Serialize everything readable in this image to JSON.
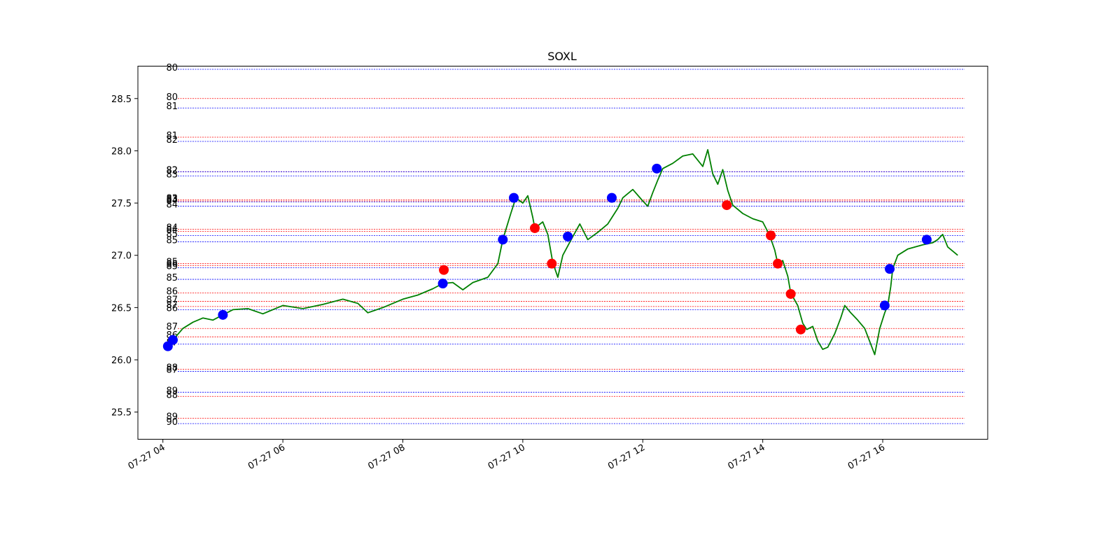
{
  "chart_data": {
    "type": "line",
    "title": "SOXL",
    "xlabel": "",
    "ylabel": "",
    "xlim": [
      "07-27 03:35",
      "07-27 17:45"
    ],
    "ylim": [
      25.24,
      28.81
    ],
    "x_ticks": [
      "07-27 04",
      "07-27 06",
      "07-27 08",
      "07-27 10",
      "07-27 12",
      "07-27 14",
      "07-27 16"
    ],
    "y_ticks": [
      "25.5",
      "26.0",
      "26.5",
      "27.0",
      "27.5",
      "28.0",
      "28.5"
    ],
    "grid": false,
    "colors": {
      "line": "#008000",
      "buy_marker": "#0000ff",
      "sell_marker": "#ff0000",
      "red_level": "#ff0000",
      "blue_level": "#0000ff"
    },
    "series": [
      {
        "type": "line",
        "color": "#008000",
        "points": [
          [
            "07-27 04:05",
            26.13
          ],
          [
            "07-27 04:10",
            26.19
          ],
          [
            "07-27 04:20",
            26.3
          ],
          [
            "07-27 04:30",
            26.36
          ],
          [
            "07-27 04:40",
            26.4
          ],
          [
            "07-27 04:50",
            26.38
          ],
          [
            "07-27 05:00",
            26.43
          ],
          [
            "07-27 05:10",
            26.48
          ],
          [
            "07-27 05:25",
            26.49
          ],
          [
            "07-27 05:40",
            26.44
          ],
          [
            "07-27 06:00",
            26.52
          ],
          [
            "07-27 06:20",
            26.49
          ],
          [
            "07-27 06:40",
            26.53
          ],
          [
            "07-27 07:00",
            26.58
          ],
          [
            "07-27 07:15",
            26.54
          ],
          [
            "07-27 07:25",
            26.45
          ],
          [
            "07-27 07:40",
            26.5
          ],
          [
            "07-27 08:00",
            26.58
          ],
          [
            "07-27 08:15",
            26.62
          ],
          [
            "07-27 08:30",
            26.68
          ],
          [
            "07-27 08:40",
            26.73
          ],
          [
            "07-27 08:50",
            26.74
          ],
          [
            "07-27 09:00",
            26.67
          ],
          [
            "07-27 09:10",
            26.74
          ],
          [
            "07-27 09:25",
            26.79
          ],
          [
            "07-27 09:35",
            26.92
          ],
          [
            "07-27 09:40",
            27.15
          ],
          [
            "07-27 09:48",
            27.4
          ],
          [
            "07-27 09:53",
            27.55
          ],
          [
            "07-27 10:00",
            27.5
          ],
          [
            "07-27 10:05",
            27.57
          ],
          [
            "07-27 10:10",
            27.36
          ],
          [
            "07-27 10:12",
            27.26
          ],
          [
            "07-27 10:20",
            27.32
          ],
          [
            "07-27 10:25",
            27.2
          ],
          [
            "07-27 10:30",
            26.93
          ],
          [
            "07-27 10:35",
            26.79
          ],
          [
            "07-27 10:40",
            27.0
          ],
          [
            "07-27 10:50",
            27.18
          ],
          [
            "07-27 10:57",
            27.3
          ],
          [
            "07-27 11:05",
            27.15
          ],
          [
            "07-27 11:15",
            27.22
          ],
          [
            "07-27 11:25",
            27.3
          ],
          [
            "07-27 11:35",
            27.45
          ],
          [
            "07-27 11:40",
            27.55
          ],
          [
            "07-27 11:50",
            27.63
          ],
          [
            "07-27 12:00",
            27.52
          ],
          [
            "07-27 12:05",
            27.47
          ],
          [
            "07-27 12:10",
            27.6
          ],
          [
            "07-27 12:15",
            27.72
          ],
          [
            "07-27 12:20",
            27.83
          ],
          [
            "07-27 12:30",
            27.88
          ],
          [
            "07-27 12:40",
            27.95
          ],
          [
            "07-27 12:50",
            27.97
          ],
          [
            "07-27 13:00",
            27.85
          ],
          [
            "07-27 13:05",
            28.01
          ],
          [
            "07-27 13:10",
            27.78
          ],
          [
            "07-27 13:15",
            27.68
          ],
          [
            "07-27 13:20",
            27.82
          ],
          [
            "07-27 13:25",
            27.62
          ],
          [
            "07-27 13:30",
            27.48
          ],
          [
            "07-27 13:40",
            27.4
          ],
          [
            "07-27 13:50",
            27.35
          ],
          [
            "07-27 14:00",
            27.32
          ],
          [
            "07-27 14:07",
            27.19
          ],
          [
            "07-27 14:12",
            27.05
          ],
          [
            "07-27 14:15",
            26.92
          ],
          [
            "07-27 14:20",
            26.95
          ],
          [
            "07-27 14:25",
            26.8
          ],
          [
            "07-27 14:28",
            26.64
          ],
          [
            "07-27 14:35",
            26.52
          ],
          [
            "07-27 14:40",
            26.35
          ],
          [
            "07-27 14:44",
            26.29
          ],
          [
            "07-27 14:50",
            26.32
          ],
          [
            "07-27 14:55",
            26.18
          ],
          [
            "07-27 15:00",
            26.1
          ],
          [
            "07-27 15:05",
            26.12
          ],
          [
            "07-27 15:12",
            26.25
          ],
          [
            "07-27 15:18",
            26.4
          ],
          [
            "07-27 15:22",
            26.52
          ],
          [
            "07-27 15:28",
            26.45
          ],
          [
            "07-27 15:35",
            26.38
          ],
          [
            "07-27 15:42",
            26.3
          ],
          [
            "07-27 15:48",
            26.15
          ],
          [
            "07-27 15:52",
            26.05
          ],
          [
            "07-27 15:57",
            26.3
          ],
          [
            "07-27 16:02",
            26.45
          ],
          [
            "07-27 16:05",
            26.52
          ],
          [
            "07-27 16:08",
            26.7
          ],
          [
            "07-27 16:10",
            26.87
          ],
          [
            "07-27 16:15",
            27.0
          ],
          [
            "07-27 16:25",
            27.06
          ],
          [
            "07-27 16:40",
            27.1
          ],
          [
            "07-27 16:50",
            27.12
          ],
          [
            "07-27 16:55",
            27.15
          ],
          [
            "07-27 17:00",
            27.2
          ],
          [
            "07-27 17:05",
            27.08
          ],
          [
            "07-27 17:15",
            27.0
          ]
        ]
      }
    ],
    "markers": [
      {
        "x": "07-27 04:05",
        "y": 26.13,
        "color": "blue"
      },
      {
        "x": "07-27 04:10",
        "y": 26.19,
        "color": "blue"
      },
      {
        "x": "07-27 05:00",
        "y": 26.43,
        "color": "blue"
      },
      {
        "x": "07-27 08:40",
        "y": 26.73,
        "color": "blue"
      },
      {
        "x": "07-27 08:41",
        "y": 26.86,
        "color": "red"
      },
      {
        "x": "07-27 09:40",
        "y": 27.15,
        "color": "blue"
      },
      {
        "x": "07-27 09:51",
        "y": 27.55,
        "color": "blue"
      },
      {
        "x": "07-27 10:12",
        "y": 27.26,
        "color": "red"
      },
      {
        "x": "07-27 10:29",
        "y": 26.92,
        "color": "red"
      },
      {
        "x": "07-27 10:45",
        "y": 27.18,
        "color": "blue"
      },
      {
        "x": "07-27 11:29",
        "y": 27.55,
        "color": "blue"
      },
      {
        "x": "07-27 12:14",
        "y": 27.83,
        "color": "blue"
      },
      {
        "x": "07-27 13:24",
        "y": 27.48,
        "color": "red"
      },
      {
        "x": "07-27 14:08",
        "y": 27.19,
        "color": "red"
      },
      {
        "x": "07-27 14:15",
        "y": 26.92,
        "color": "red"
      },
      {
        "x": "07-27 14:28",
        "y": 26.63,
        "color": "red"
      },
      {
        "x": "07-27 14:38",
        "y": 26.29,
        "color": "red"
      },
      {
        "x": "07-27 16:02",
        "y": 26.52,
        "color": "blue"
      },
      {
        "x": "07-27 16:07",
        "y": 26.87,
        "color": "blue"
      },
      {
        "x": "07-27 16:44",
        "y": 27.15,
        "color": "blue"
      }
    ],
    "levels": [
      {
        "y": 28.78,
        "color": "blue",
        "label": "80"
      },
      {
        "y": 28.5,
        "color": "red",
        "label": "80"
      },
      {
        "y": 28.41,
        "color": "blue",
        "label": "81"
      },
      {
        "y": 28.13,
        "color": "red",
        "label": "81"
      },
      {
        "y": 28.09,
        "color": "blue",
        "label": "82"
      },
      {
        "y": 27.8,
        "color": "red",
        "label": "82"
      },
      {
        "y": 27.8,
        "color": "blue",
        "label": "82"
      },
      {
        "y": 27.76,
        "color": "blue",
        "label": "83"
      },
      {
        "y": 27.53,
        "color": "red",
        "label": "83"
      },
      {
        "y": 27.52,
        "color": "red",
        "label": "83"
      },
      {
        "y": 27.51,
        "color": "blue",
        "label": "84"
      },
      {
        "y": 27.47,
        "color": "blue",
        "label": "84"
      },
      {
        "y": 27.25,
        "color": "red",
        "label": "84"
      },
      {
        "y": 27.23,
        "color": "red",
        "label": "84"
      },
      {
        "y": 27.19,
        "color": "blue",
        "label": "85"
      },
      {
        "y": 27.13,
        "color": "blue",
        "label": "85"
      },
      {
        "y": 26.92,
        "color": "red",
        "label": "85"
      },
      {
        "y": 26.9,
        "color": "red",
        "label": "86"
      },
      {
        "y": 26.88,
        "color": "blue",
        "label": "85"
      },
      {
        "y": 26.77,
        "color": "blue",
        "label": "85"
      },
      {
        "y": 26.64,
        "color": "red",
        "label": "86"
      },
      {
        "y": 26.56,
        "color": "red",
        "label": "87"
      },
      {
        "y": 26.51,
        "color": "red",
        "label": "87"
      },
      {
        "y": 26.48,
        "color": "blue",
        "label": "86"
      },
      {
        "y": 26.3,
        "color": "red",
        "label": "87"
      },
      {
        "y": 26.22,
        "color": "red",
        "label": "86"
      },
      {
        "y": 26.15,
        "color": "blue",
        "label": "87"
      },
      {
        "y": 25.91,
        "color": "red",
        "label": "88"
      },
      {
        "y": 25.89,
        "color": "blue",
        "label": "87"
      },
      {
        "y": 25.69,
        "color": "blue",
        "label": "89"
      },
      {
        "y": 25.65,
        "color": "red",
        "label": "88"
      },
      {
        "y": 25.44,
        "color": "red",
        "label": "89"
      },
      {
        "y": 25.39,
        "color": "blue",
        "label": "90"
      }
    ]
  }
}
